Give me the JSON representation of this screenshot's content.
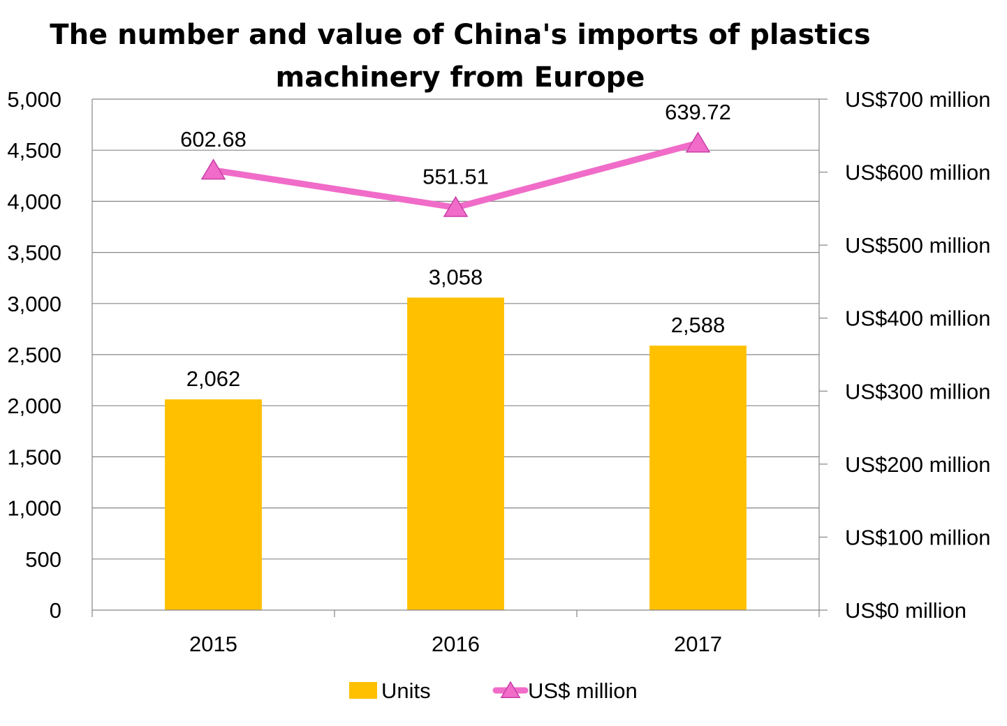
{
  "chart_data": {
    "type": "bar",
    "title_lines": [
      "The number and value of China's imports of plastics",
      "machinery from Europe"
    ],
    "categories": [
      "2015",
      "2016",
      "2017"
    ],
    "series": [
      {
        "name": "Units",
        "type": "bar",
        "axis": "left",
        "values": [
          2062,
          3058,
          2588
        ],
        "labels": [
          "2,062",
          "3,058",
          "2,588"
        ],
        "color": "#FFC000"
      },
      {
        "name": "US$ million",
        "type": "line",
        "axis": "right",
        "marker": "triangle",
        "values": [
          602.68,
          551.51,
          639.72
        ],
        "labels": [
          "602.68",
          "551.51",
          "639.72"
        ],
        "color": "#F06CC8"
      }
    ],
    "y_left": {
      "range": [
        0,
        5000
      ],
      "ticks": [
        0,
        500,
        1000,
        1500,
        2000,
        2500,
        3000,
        3500,
        4000,
        4500,
        5000
      ],
      "tick_labels": [
        "0",
        "500",
        "1,000",
        "1,500",
        "2,000",
        "2,500",
        "3,000",
        "3,500",
        "4,000",
        "4,500",
        "5,000"
      ]
    },
    "y_right": {
      "range": [
        0,
        700
      ],
      "ticks": [
        0,
        100,
        200,
        300,
        400,
        500,
        600,
        700
      ],
      "tick_labels": [
        "US$0 million",
        "US$100 million",
        "US$200 million",
        "US$300 million",
        "US$400 million",
        "US$500 million",
        "US$600 million",
        "US$700 million"
      ]
    },
    "grid": true,
    "legend_position": "bottom"
  }
}
